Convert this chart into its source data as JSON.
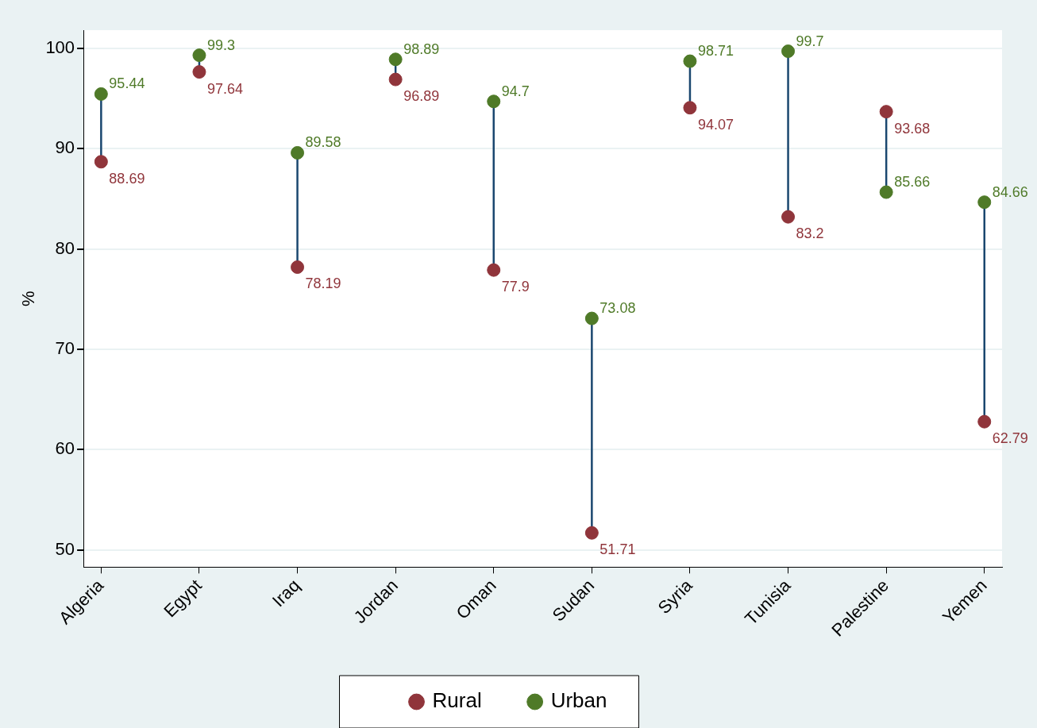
{
  "chart_data": {
    "type": "scatter",
    "ylabel": "%",
    "categories": [
      "Algeria",
      "Egypt",
      "Iraq",
      "Jordan",
      "Oman",
      "Sudan",
      "Syria",
      "Tunisia",
      "Palestine",
      "Yemen"
    ],
    "series": [
      {
        "name": "Rural",
        "color": "#90353b",
        "values": [
          88.69,
          97.64,
          78.19,
          96.89,
          77.9,
          51.71,
          94.07,
          83.2,
          93.68,
          62.79
        ]
      },
      {
        "name": "Urban",
        "color": "#4f7a28",
        "values": [
          95.44,
          99.3,
          89.58,
          98.89,
          94.7,
          73.08,
          98.71,
          99.7,
          85.66,
          84.66
        ]
      }
    ],
    "ylim": [
      48.3,
      101.8
    ],
    "yticks": [
      50,
      60,
      70,
      80,
      90,
      100
    ],
    "grid": "y",
    "legend": "bottom",
    "marker": "circle",
    "data_labels": true
  }
}
